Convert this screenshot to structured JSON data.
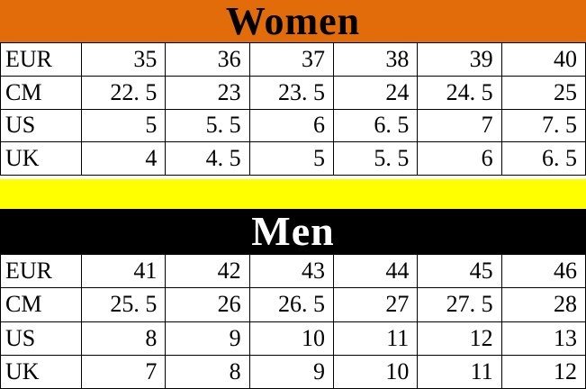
{
  "women": {
    "title": "Women",
    "header_bg": "#E36C0A",
    "title_color": "#000000",
    "rows": [
      {
        "label": "EUR",
        "values": [
          "35",
          "36",
          "37",
          "38",
          "39",
          "40"
        ]
      },
      {
        "label": "CM",
        "values": [
          "22. 5",
          "23",
          "23. 5",
          "24",
          "24. 5",
          "25"
        ]
      },
      {
        "label": "US",
        "values": [
          "5",
          "5. 5",
          "6",
          "6. 5",
          "7",
          "7. 5"
        ]
      },
      {
        "label": "UK",
        "values": [
          "4",
          "4. 5",
          "5",
          "5. 5",
          "6",
          "6. 5"
        ]
      }
    ]
  },
  "men": {
    "title": "Men",
    "header_bg": "#000000",
    "title_color": "#FFFFFF",
    "rows": [
      {
        "label": "EUR",
        "values": [
          "41",
          "42",
          "43",
          "44",
          "45",
          "46"
        ]
      },
      {
        "label": "CM",
        "values": [
          "25. 5",
          "26",
          "26. 5",
          "27",
          "27. 5",
          "28"
        ]
      },
      {
        "label": "US",
        "values": [
          "8",
          "9",
          "10",
          "11",
          "12",
          "13"
        ]
      },
      {
        "label": "UK",
        "values": [
          "7",
          "8",
          "9",
          "10",
          "11",
          "12"
        ]
      }
    ]
  },
  "divider_color": "#FFFF00",
  "grid_border_color": "#000000",
  "chart_data": [
    {
      "type": "table",
      "title": "Women",
      "row_labels": [
        "EUR",
        "CM",
        "US",
        "UK"
      ],
      "rows": [
        [
          35,
          36,
          37,
          38,
          39,
          40
        ],
        [
          22.5,
          23,
          23.5,
          24,
          24.5,
          25
        ],
        [
          5,
          5.5,
          6,
          6.5,
          7,
          7.5
        ],
        [
          4,
          4.5,
          5,
          5.5,
          6,
          6.5
        ]
      ]
    },
    {
      "type": "table",
      "title": "Men",
      "row_labels": [
        "EUR",
        "CM",
        "US",
        "UK"
      ],
      "rows": [
        [
          41,
          42,
          43,
          44,
          45,
          46
        ],
        [
          25.5,
          26,
          26.5,
          27,
          27.5,
          28
        ],
        [
          8,
          9,
          10,
          11,
          12,
          13
        ],
        [
          7,
          8,
          9,
          10,
          11,
          12
        ]
      ]
    }
  ]
}
